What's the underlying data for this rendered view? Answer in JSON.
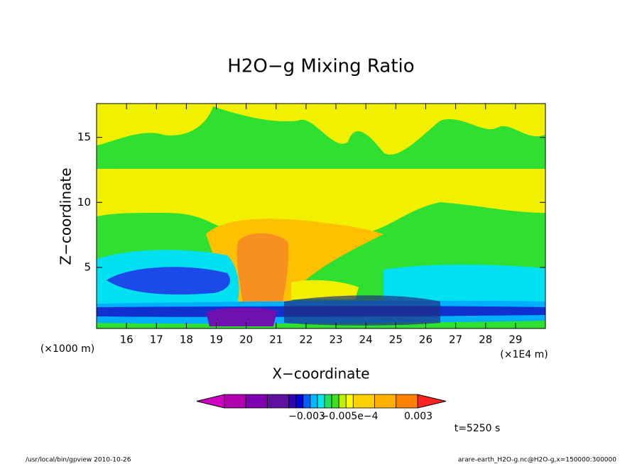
{
  "chart_data": {
    "type": "contour",
    "title": "H2O−g Mixing Ratio",
    "x_label": "X−coordinate",
    "y_label": "Z−coordinate",
    "x_unit_left": "(×1000 m)",
    "x_unit_right": "(×1E4 m)",
    "xlim": [
      15,
      30
    ],
    "xticks": [
      16,
      17,
      18,
      19,
      20,
      21,
      22,
      23,
      24,
      25,
      26,
      27,
      28,
      29
    ],
    "ylim": [
      0.3,
      17.6
    ],
    "yticks": [
      5,
      10,
      15
    ],
    "colorbar": {
      "labels": [
        "−0.003",
        "−0.005e−4",
        "0.003"
      ],
      "colors": [
        "#d000c0",
        "#b000b0",
        "#8000b0",
        "#6010a0",
        "#3000c0",
        "#0000e0",
        "#0060ff",
        "#00b8ff",
        "#00e8e8",
        "#20e060",
        "#40e020",
        "#c0f000",
        "#ffff00",
        "#ffd000",
        "#ffb000",
        "#ff8000",
        "#ff2020"
      ]
    },
    "time_label": "t=5250 s",
    "footer_left": "/usr/local/bin/gpview  2010-10-26",
    "footer_right": "arare-earth_H2O-g.nc@H2O-g,x=150000:300000"
  }
}
